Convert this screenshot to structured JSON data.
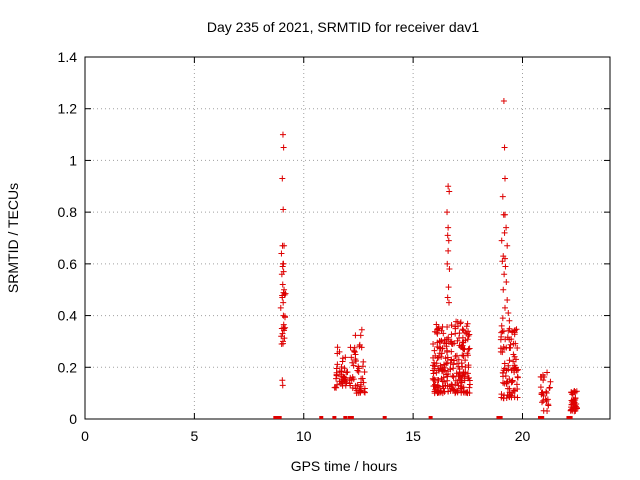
{
  "chart_data": {
    "type": "scatter",
    "title": "Day 235 of 2021, SRMTID for receiver dav1",
    "xlabel": "GPS time / hours",
    "ylabel": "SRMTID / TECUs",
    "xlim": [
      0,
      24
    ],
    "ylim": [
      0,
      1.4
    ],
    "xticks": [
      0,
      5,
      10,
      15,
      20
    ],
    "yticks": [
      0,
      0.2,
      0.4,
      0.6,
      0.8,
      1,
      1.2,
      1.4
    ],
    "xtick_labels": [
      "0",
      "5",
      "10",
      "15",
      "20"
    ],
    "ytick_labels": [
      "0",
      "0.2",
      "0.4",
      "0.6",
      "0.8",
      "1",
      "1.2",
      "1.4"
    ],
    "grid": true,
    "marker": "+",
    "color": "#dd0000",
    "series": [
      {
        "name": "SRMTID",
        "clusters": [
          {
            "x": [
              9.0,
              9.2
            ],
            "points": [
              [
                9.05,
                1.1
              ],
              [
                9.08,
                1.05
              ],
              [
                9.02,
                0.93
              ],
              [
                9.06,
                0.81
              ],
              [
                9.1,
                0.67
              ],
              [
                9.03,
                0.67
              ],
              [
                8.98,
                0.64
              ],
              [
                9.05,
                0.6
              ],
              [
                9.08,
                0.57
              ],
              [
                9.0,
                0.56
              ],
              [
                9.04,
                0.52
              ],
              [
                9.1,
                0.5
              ],
              [
                9.02,
                0.47
              ],
              [
                9.06,
                0.45
              ],
              [
                8.95,
                0.43
              ],
              [
                9.07,
                0.4
              ],
              [
                9.0,
                0.35
              ],
              [
                9.03,
                0.33
              ],
              [
                8.97,
                0.32
              ],
              [
                9.05,
                0.3
              ],
              [
                8.99,
                0.29
              ],
              [
                9.02,
                0.15
              ],
              [
                9.04,
                0.13
              ]
            ],
            "n": 15,
            "ymin": 0.29,
            "ymax": 0.62
          },
          {
            "x": [
              11.4,
              12.3
            ],
            "n": 55,
            "ymin": 0.12,
            "ymax": 0.28
          },
          {
            "x": [
              12.3,
              12.8
            ],
            "n": 40,
            "ymin": 0.1,
            "ymax": 0.35
          },
          {
            "x": [
              15.9,
              17.6
            ],
            "n": 230,
            "ymin": 0.1,
            "ymax": 0.38
          },
          {
            "x": [
              16.4,
              16.9
            ],
            "points": [
              [
                16.6,
                0.9
              ],
              [
                16.65,
                0.88
              ],
              [
                16.55,
                0.8
              ],
              [
                16.6,
                0.74
              ],
              [
                16.58,
                0.71
              ],
              [
                16.63,
                0.69
              ],
              [
                16.6,
                0.65
              ],
              [
                16.56,
                0.6
              ],
              [
                16.66,
                0.58
              ],
              [
                16.62,
                0.51
              ],
              [
                16.58,
                0.47
              ],
              [
                16.64,
                0.45
              ]
            ],
            "n": 0
          },
          {
            "x": [
              19.0,
              19.8
            ],
            "points": [
              [
                19.15,
                1.23
              ],
              [
                19.18,
                1.05
              ],
              [
                19.2,
                0.93
              ],
              [
                19.1,
                0.86
              ],
              [
                19.14,
                0.79
              ],
              [
                19.2,
                0.79
              ],
              [
                19.25,
                0.74
              ],
              [
                19.18,
                0.72
              ],
              [
                19.05,
                0.69
              ],
              [
                19.3,
                0.67
              ],
              [
                19.12,
                0.63
              ],
              [
                19.2,
                0.62
              ],
              [
                19.08,
                0.61
              ],
              [
                19.22,
                0.59
              ],
              [
                19.16,
                0.56
              ],
              [
                19.26,
                0.53
              ],
              [
                19.12,
                0.5
              ],
              [
                19.3,
                0.46
              ],
              [
                19.2,
                0.43
              ],
              [
                19.35,
                0.41
              ],
              [
                19.1,
                0.39
              ],
              [
                19.4,
                0.38
              ],
              [
                19.05,
                0.36
              ],
              [
                19.15,
                0.34
              ]
            ],
            "n": 90,
            "ymin": 0.08,
            "ymax": 0.35
          },
          {
            "x": [
              20.8,
              21.3
            ],
            "n": 25,
            "ymin": 0.03,
            "ymax": 0.18
          },
          {
            "x": [
              22.2,
              22.5
            ],
            "n": 40,
            "ymin": 0.03,
            "ymax": 0.11
          }
        ],
        "zeros": [
          8.7,
          8.75,
          8.8,
          8.85,
          8.9,
          10.8,
          11.4,
          11.9,
          12.1,
          12.2,
          13.7,
          15.8,
          18.9,
          19.0,
          20.8,
          20.9,
          22.1,
          22.2
        ]
      }
    ]
  }
}
